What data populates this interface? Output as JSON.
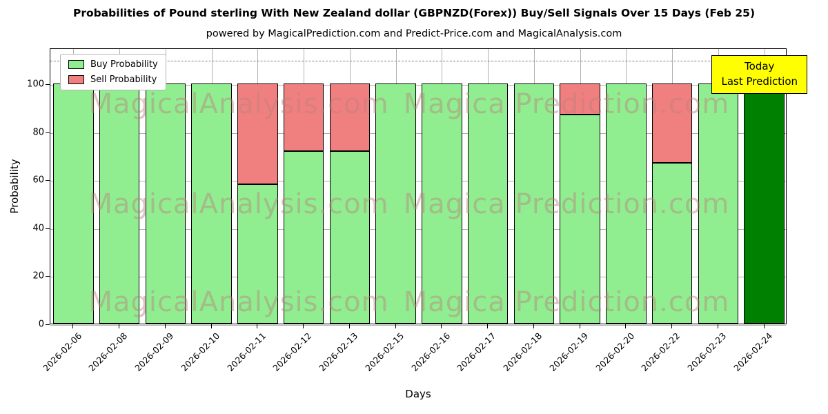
{
  "title": "Probabilities of Pound sterling With New Zealand dollar (GBPNZD(Forex)) Buy/Sell Signals Over 15 Days (Feb 25)",
  "subtitle": "powered by MagicalPrediction.com and Predict-Price.com and MagicalAnalysis.com",
  "annotation": {
    "line1": "Today",
    "line2": "Last Prediction"
  },
  "watermarks": [
    "MagicalAnalysis.com",
    "Magica Prediction.com"
  ],
  "chart_data": {
    "type": "bar",
    "stacked": true,
    "title": "Probabilities of Pound sterling With New Zealand dollar (GBPNZD(Forex)) Buy/Sell Signals Over 15 Days (Feb 25)",
    "xlabel": "Days",
    "ylabel": "Probability",
    "categories": [
      "2026-02-06",
      "2026-02-08",
      "2026-02-09",
      "2026-02-10",
      "2026-02-11",
      "2026-02-12",
      "2026-02-13",
      "2026-02-15",
      "2026-02-16",
      "2026-02-17",
      "2026-02-18",
      "2026-02-19",
      "2026-02-20",
      "2026-02-22",
      "2026-02-23",
      "2026-02-24"
    ],
    "series": [
      {
        "name": "Buy Probability",
        "color": "#90EE90",
        "values": [
          100,
          100,
          100,
          100,
          58,
          72,
          72,
          100,
          100,
          100,
          100,
          87,
          100,
          67,
          100,
          100
        ]
      },
      {
        "name": "Sell Probability",
        "color": "#F08080",
        "values": [
          0,
          0,
          0,
          0,
          42,
          28,
          28,
          0,
          0,
          0,
          0,
          13,
          0,
          33,
          0,
          0
        ]
      }
    ],
    "today_index": 15,
    "today_color": "#008000",
    "yticks": [
      0,
      20,
      40,
      60,
      80,
      100
    ],
    "ylim": [
      0,
      115
    ],
    "dashed_line_y": 110,
    "grid": true,
    "legend_position": "upper left"
  }
}
